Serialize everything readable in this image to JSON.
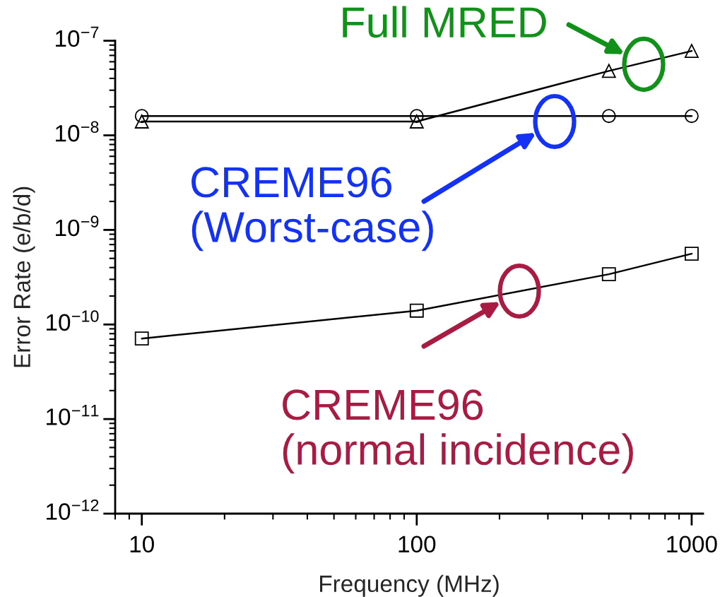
{
  "chart_data": {
    "type": "line",
    "xlabel": "Frequency (MHz)",
    "ylabel": "Error Rate (e/b/d)",
    "log": "xy",
    "grid": false,
    "xlim": [
      8,
      1100
    ],
    "xticks": [
      10,
      100,
      1000
    ],
    "ylim": [
      1e-12,
      1e-07
    ],
    "yticks": [
      {
        "value": 1e-12,
        "label": "10$^{−12}$"
      },
      {
        "value": 1e-11,
        "label": "10$^{−11}$"
      },
      {
        "value": 1e-10,
        "label": "10$^{−10}$"
      },
      {
        "value": 1e-09,
        "label": "10$^{−9}$"
      },
      {
        "value": 1e-08,
        "label": "10$^{−8}$"
      },
      {
        "value": 1e-07,
        "label": "10$^{−7}$"
      }
    ],
    "series": [
      {
        "color": "#000000",
        "marker": "circle",
        "x": [
          10,
          100,
          500,
          1000
        ],
        "values": [
          1.6e-08,
          1.6e-08,
          1.6e-08,
          1.6e-08
        ]
      },
      {
        "color": "#000000",
        "marker": "triangle",
        "x": [
          10,
          100,
          500,
          1000
        ],
        "values": [
          1.4e-08,
          1.4e-08,
          4.8e-08,
          7.8e-08
        ]
      },
      {
        "color": "#000000",
        "marker": "square",
        "x": [
          10,
          100,
          500,
          1000
        ],
        "values": [
          7.1e-11,
          1.4e-10,
          3.4e-10,
          5.6e-10
        ]
      }
    ],
    "annotations": [
      "Full MRED",
      "CREME96\n(Worst-case)",
      "CREME96\n(normal incidence)"
    ]
  }
}
